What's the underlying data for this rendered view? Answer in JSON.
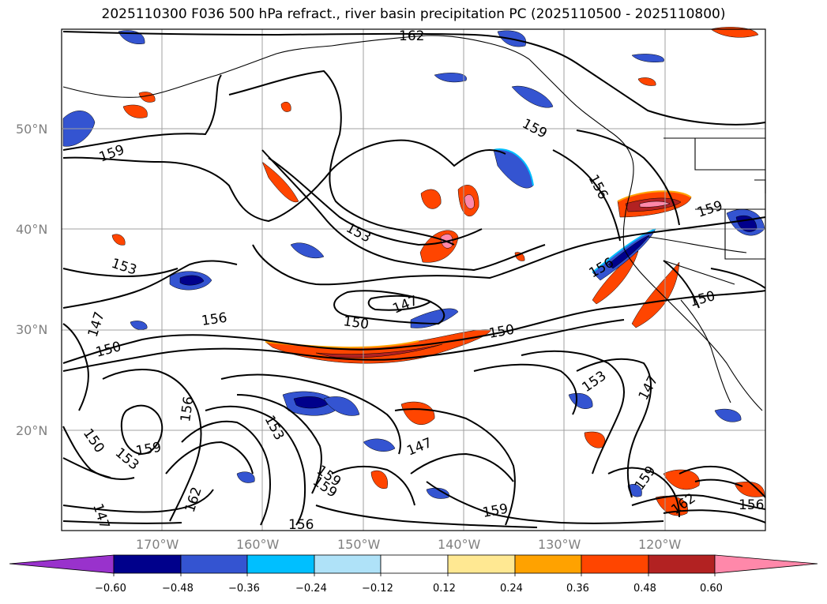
{
  "title": "2025110300 F036 500 hPa refract., river basin precipitation PC (2025110500 - 2025110800)",
  "lat_labels": [
    "50°N",
    "40°N",
    "30°N",
    "20°N"
  ],
  "lon_labels": [
    "170°W",
    "160°W",
    "150°W",
    "140°W",
    "130°W",
    "120°W"
  ],
  "contour_labels": [
    "162",
    "159",
    "159",
    "156",
    "159",
    "153",
    "153",
    "147",
    "147",
    "150",
    "156",
    "150",
    "150",
    "156",
    "150",
    "153",
    "147",
    "156",
    "153",
    "159",
    "150",
    "153",
    "162",
    "147",
    "159",
    "159",
    "159",
    "156",
    "159",
    "162",
    "156",
    "147"
  ],
  "colorbar": {
    "ticks": [
      "−0.60",
      "−0.48",
      "−0.36",
      "−0.24",
      "−0.12",
      "0.12",
      "0.24",
      "0.36",
      "0.48",
      "0.60"
    ],
    "colors": [
      "#9932cc",
      "#00008b",
      "#3454d1",
      "#00bfff",
      "#afe2f8",
      "#ffffff",
      "#ffe892",
      "#ffa200",
      "#ff4500",
      "#b22222",
      "#ff88aa"
    ]
  },
  "colors": {
    "contour": "#000000",
    "grid": "#a0a0a0",
    "coast": "#000000"
  }
}
